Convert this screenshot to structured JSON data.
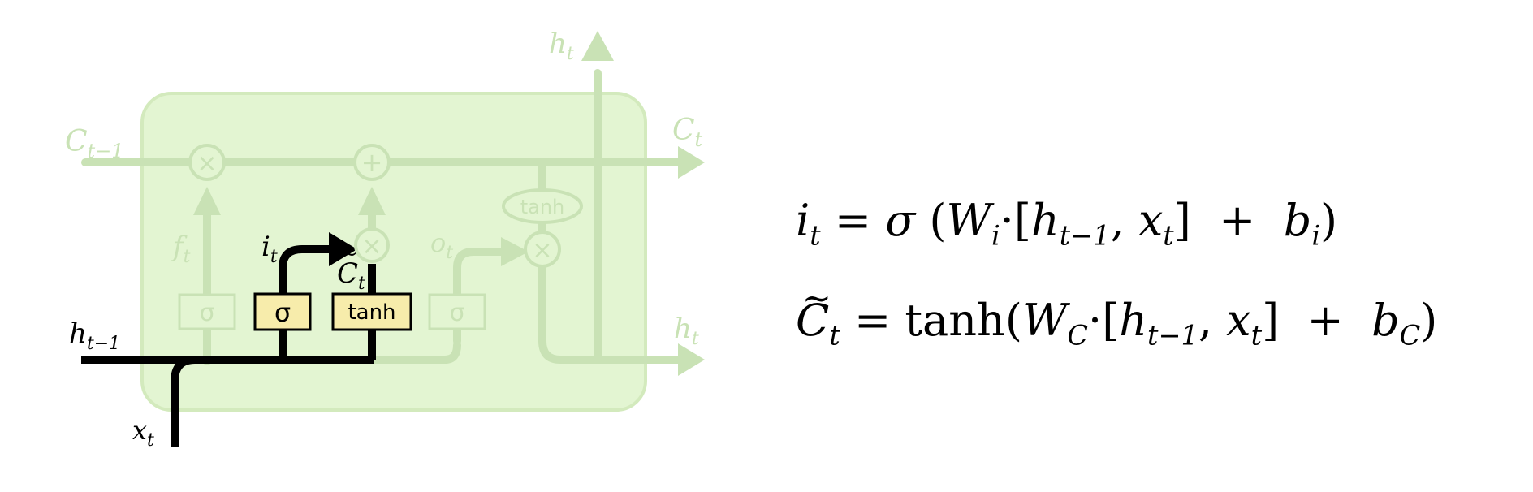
{
  "diagram": {
    "cell_state_labels": {
      "input": "C",
      "input_sub": "t−1",
      "output": "C",
      "output_sub": "t"
    },
    "hidden_labels": {
      "top": "h",
      "top_sub": "t",
      "right": "h",
      "right_sub": "t",
      "input": "h",
      "input_sub": "t−1"
    },
    "input_label": {
      "main": "x",
      "sub": "t"
    },
    "gate_labels": {
      "forget": "f",
      "forget_sub": "t",
      "input": "i",
      "input_sub": "t",
      "candidate": "C",
      "candidate_sub": "t",
      "output": "o",
      "output_sub": "t"
    },
    "boxes": {
      "forget_sigma": "σ",
      "input_sigma": "σ",
      "candidate_tanh": "tanh",
      "output_sigma": "σ"
    },
    "ops": {
      "forget_mult": "×",
      "add": "+",
      "input_mult": "×",
      "output_mult": "×",
      "output_tanh": "tanh"
    },
    "colors": {
      "cell_bg": "#e3f5d2",
      "faded": "#c9e2b5",
      "highlight_box": "#f7ecab",
      "active": "#000000"
    }
  },
  "equations": {
    "eq1": {
      "lhs": "i",
      "lhs_sub": "t",
      "eq": " = ",
      "sigma": "σ",
      "open": " (",
      "W": "W",
      "W_sub": "i",
      "dot": "·",
      "lb": "[",
      "h": "h",
      "h_sub": "t−1",
      "comma": ", ",
      "x": "x",
      "x_sub": "t",
      "rb": "]",
      "plus": "  +  ",
      "b": "b",
      "b_sub": "i",
      "close": ")"
    },
    "eq2": {
      "lhs": "C",
      "lhs_sub": "t",
      "eq": " = ",
      "fn": "tanh",
      "open": "(",
      "W": "W",
      "W_sub": "C",
      "dot": "·",
      "lb": "[",
      "h": "h",
      "h_sub": "t−1",
      "comma": ", ",
      "x": "x",
      "x_sub": "t",
      "rb": "]",
      "plus": "  +  ",
      "b": "b",
      "b_sub": "C",
      "close": ")"
    }
  }
}
